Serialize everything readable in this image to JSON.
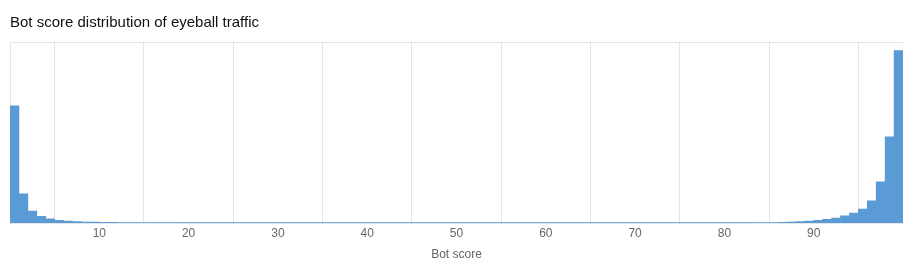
{
  "chart_data": {
    "type": "histogram",
    "title": "Bot score distribution of eyeball traffic",
    "xlabel": "Bot score",
    "color": "#5b9bd5",
    "bins": [
      0,
      1,
      2,
      3,
      4,
      5,
      6,
      7,
      8,
      9,
      10,
      11,
      12,
      13,
      14,
      15,
      16,
      17,
      18,
      19,
      20,
      21,
      22,
      23,
      24,
      25,
      26,
      27,
      28,
      29,
      30,
      31,
      32,
      33,
      34,
      35,
      36,
      37,
      38,
      39,
      40,
      41,
      42,
      43,
      44,
      45,
      46,
      47,
      48,
      49,
      50,
      51,
      52,
      53,
      54,
      55,
      56,
      57,
      58,
      59,
      60,
      61,
      62,
      63,
      64,
      65,
      66,
      67,
      68,
      69,
      70,
      71,
      72,
      73,
      74,
      75,
      76,
      77,
      78,
      79,
      80,
      81,
      82,
      83,
      84,
      85,
      86,
      87,
      88,
      89,
      90,
      91,
      92,
      93,
      94,
      95,
      96,
      97,
      98,
      99,
      100
    ],
    "values": [
      0.68,
      0.17,
      0.07,
      0.04,
      0.025,
      0.016,
      0.012,
      0.009,
      0.007,
      0.006,
      0.005,
      0.005,
      0.004,
      0.004,
      0.003,
      0.003,
      0.003,
      0.003,
      0.003,
      0.002,
      0.002,
      0.002,
      0.002,
      0.002,
      0.002,
      0.002,
      0.001,
      0.001,
      0.001,
      0.001,
      0.001,
      0.001,
      0.001,
      0.001,
      0.001,
      0.001,
      0.001,
      0.001,
      0.001,
      0.001,
      0.001,
      0.001,
      0.001,
      0.001,
      0.001,
      0.001,
      0.001,
      0.001,
      0.001,
      0.001,
      0.001,
      0.001,
      0.001,
      0.001,
      0.001,
      0.001,
      0.001,
      0.001,
      0.001,
      0.001,
      0.001,
      0.001,
      0.001,
      0.001,
      0.001,
      0.001,
      0.001,
      0.001,
      0.001,
      0.001,
      0.001,
      0.001,
      0.001,
      0.001,
      0.001,
      0.001,
      0.001,
      0.001,
      0.001,
      0.001,
      0.001,
      0.0015,
      0.002,
      0.0025,
      0.003,
      0.004,
      0.005,
      0.007,
      0.009,
      0.012,
      0.016,
      0.022,
      0.03,
      0.042,
      0.058,
      0.082,
      0.13,
      0.24,
      0.5,
      1.0
    ],
    "xlim": [
      0,
      100
    ],
    "xticks": [
      10,
      20,
      30,
      40,
      50,
      60,
      70,
      80,
      90
    ],
    "ylim": [
      0,
      1.05
    ],
    "grid": "x",
    "tick_labels": "x"
  }
}
